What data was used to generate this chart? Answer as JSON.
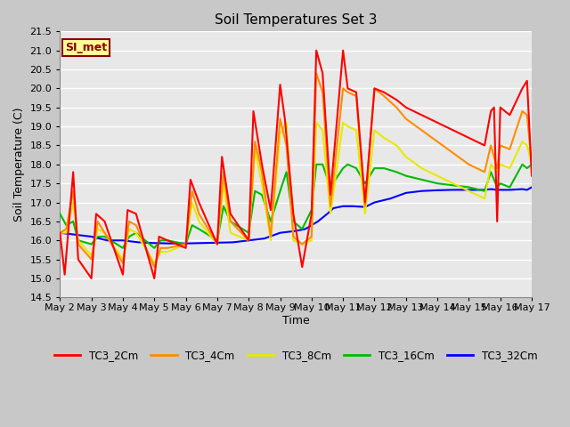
{
  "title": "Soil Temperatures Set 3",
  "xlabel": "Time",
  "ylabel": "Soil Temperature (C)",
  "ylim": [
    14.5,
    21.5
  ],
  "xlim": [
    0,
    15
  ],
  "fig_bg_color": "#c8c8c8",
  "plot_bg_color": "#e8e8e8",
  "annotation_text": "SI_met",
  "annotation_bg": "#ffff99",
  "annotation_border": "#8b0000",
  "annotation_text_color": "#8b0000",
  "x_tick_labels": [
    "May 2",
    "May 3",
    "May 4",
    "May 5",
    "May 6",
    "May 7",
    "May 8",
    "May 9",
    "May 10",
    "May 11",
    "May 12",
    "May 13",
    "May 14",
    "May 15",
    "May 16",
    "May 17"
  ],
  "yticks": [
    14.5,
    15.0,
    15.5,
    16.0,
    16.5,
    17.0,
    17.5,
    18.0,
    18.5,
    19.0,
    19.5,
    20.0,
    20.5,
    21.0,
    21.5
  ],
  "series": {
    "TC3_2Cm": {
      "color": "#ff0000",
      "data": [
        [
          0.0,
          16.2
        ],
        [
          0.15,
          15.1
        ],
        [
          0.42,
          17.8
        ],
        [
          0.58,
          15.5
        ],
        [
          1.0,
          15.0
        ],
        [
          1.15,
          16.7
        ],
        [
          1.42,
          16.5
        ],
        [
          2.0,
          15.1
        ],
        [
          2.15,
          16.8
        ],
        [
          2.42,
          16.7
        ],
        [
          3.0,
          15.0
        ],
        [
          3.15,
          16.1
        ],
        [
          3.42,
          16.0
        ],
        [
          4.0,
          15.8
        ],
        [
          4.15,
          17.6
        ],
        [
          4.42,
          17.0
        ],
        [
          5.0,
          15.9
        ],
        [
          5.15,
          18.2
        ],
        [
          5.42,
          16.7
        ],
        [
          6.0,
          16.0
        ],
        [
          6.15,
          19.4
        ],
        [
          6.42,
          18.0
        ],
        [
          6.7,
          16.8
        ],
        [
          7.0,
          20.1
        ],
        [
          7.15,
          19.2
        ],
        [
          7.42,
          16.7
        ],
        [
          7.7,
          15.3
        ],
        [
          8.0,
          16.7
        ],
        [
          8.15,
          21.0
        ],
        [
          8.35,
          20.4
        ],
        [
          8.6,
          17.2
        ],
        [
          9.0,
          21.0
        ],
        [
          9.15,
          20.0
        ],
        [
          9.42,
          19.9
        ],
        [
          9.7,
          17.0
        ],
        [
          10.0,
          20.0
        ],
        [
          10.3,
          19.9
        ],
        [
          10.7,
          19.7
        ],
        [
          11.0,
          19.5
        ],
        [
          11.5,
          19.3
        ],
        [
          12.0,
          19.1
        ],
        [
          12.5,
          18.9
        ],
        [
          13.0,
          18.7
        ],
        [
          13.5,
          18.5
        ],
        [
          13.7,
          19.4
        ],
        [
          13.8,
          19.5
        ],
        [
          13.9,
          16.5
        ],
        [
          14.0,
          19.5
        ],
        [
          14.3,
          19.3
        ],
        [
          14.7,
          20.0
        ],
        [
          14.85,
          20.2
        ],
        [
          15.0,
          17.7
        ]
      ]
    },
    "TC3_4Cm": {
      "color": "#ff8c00",
      "data": [
        [
          0.0,
          16.2
        ],
        [
          0.2,
          16.3
        ],
        [
          0.42,
          17.3
        ],
        [
          0.58,
          15.9
        ],
        [
          1.0,
          15.5
        ],
        [
          1.2,
          16.5
        ],
        [
          1.42,
          16.2
        ],
        [
          2.0,
          15.4
        ],
        [
          2.2,
          16.5
        ],
        [
          2.42,
          16.4
        ],
        [
          3.0,
          15.3
        ],
        [
          3.2,
          15.8
        ],
        [
          3.42,
          15.8
        ],
        [
          4.0,
          15.9
        ],
        [
          4.2,
          17.3
        ],
        [
          4.42,
          16.7
        ],
        [
          5.0,
          15.9
        ],
        [
          5.2,
          17.8
        ],
        [
          5.42,
          16.5
        ],
        [
          6.0,
          16.0
        ],
        [
          6.2,
          18.6
        ],
        [
          6.42,
          17.8
        ],
        [
          6.7,
          16.1
        ],
        [
          7.0,
          19.2
        ],
        [
          7.2,
          18.5
        ],
        [
          7.42,
          16.1
        ],
        [
          7.7,
          15.9
        ],
        [
          8.0,
          16.1
        ],
        [
          8.15,
          20.4
        ],
        [
          8.35,
          19.9
        ],
        [
          8.6,
          16.9
        ],
        [
          9.0,
          20.0
        ],
        [
          9.15,
          19.9
        ],
        [
          9.42,
          19.8
        ],
        [
          9.7,
          16.9
        ],
        [
          10.0,
          20.0
        ],
        [
          10.3,
          19.8
        ],
        [
          10.7,
          19.5
        ],
        [
          11.0,
          19.2
        ],
        [
          11.5,
          18.9
        ],
        [
          12.0,
          18.6
        ],
        [
          12.5,
          18.3
        ],
        [
          13.0,
          18.0
        ],
        [
          13.5,
          17.8
        ],
        [
          13.7,
          18.5
        ],
        [
          13.9,
          17.9
        ],
        [
          14.0,
          18.5
        ],
        [
          14.3,
          18.4
        ],
        [
          14.7,
          19.4
        ],
        [
          14.85,
          19.3
        ],
        [
          15.0,
          18.0
        ]
      ]
    },
    "TC3_8Cm": {
      "color": "#e8e800",
      "data": [
        [
          0.0,
          16.2
        ],
        [
          0.2,
          16.2
        ],
        [
          0.42,
          17.0
        ],
        [
          0.58,
          16.0
        ],
        [
          1.0,
          15.6
        ],
        [
          1.2,
          16.3
        ],
        [
          1.42,
          16.2
        ],
        [
          2.0,
          15.5
        ],
        [
          2.2,
          16.3
        ],
        [
          2.42,
          16.2
        ],
        [
          3.0,
          15.4
        ],
        [
          3.2,
          15.7
        ],
        [
          3.42,
          15.7
        ],
        [
          4.0,
          15.9
        ],
        [
          4.2,
          17.0
        ],
        [
          4.42,
          16.5
        ],
        [
          5.0,
          15.9
        ],
        [
          5.2,
          17.5
        ],
        [
          5.42,
          16.2
        ],
        [
          6.0,
          16.0
        ],
        [
          6.2,
          18.4
        ],
        [
          6.42,
          17.5
        ],
        [
          6.7,
          16.0
        ],
        [
          7.0,
          18.8
        ],
        [
          7.2,
          19.1
        ],
        [
          7.42,
          16.0
        ],
        [
          7.7,
          15.9
        ],
        [
          8.0,
          16.0
        ],
        [
          8.15,
          19.1
        ],
        [
          8.35,
          18.9
        ],
        [
          8.6,
          16.7
        ],
        [
          9.0,
          19.1
        ],
        [
          9.15,
          19.0
        ],
        [
          9.42,
          18.9
        ],
        [
          9.7,
          16.7
        ],
        [
          10.0,
          18.9
        ],
        [
          10.3,
          18.7
        ],
        [
          10.7,
          18.5
        ],
        [
          11.0,
          18.2
        ],
        [
          11.5,
          17.9
        ],
        [
          12.0,
          17.7
        ],
        [
          12.5,
          17.5
        ],
        [
          13.0,
          17.3
        ],
        [
          13.5,
          17.1
        ],
        [
          13.7,
          18.0
        ],
        [
          13.9,
          17.8
        ],
        [
          14.0,
          18.0
        ],
        [
          14.3,
          17.9
        ],
        [
          14.7,
          18.6
        ],
        [
          14.85,
          18.5
        ],
        [
          15.0,
          18.0
        ]
      ]
    },
    "TC3_16Cm": {
      "color": "#00bb00",
      "data": [
        [
          0.0,
          16.7
        ],
        [
          0.2,
          16.4
        ],
        [
          0.42,
          16.5
        ],
        [
          0.58,
          16.0
        ],
        [
          1.0,
          15.9
        ],
        [
          1.2,
          16.1
        ],
        [
          1.42,
          16.1
        ],
        [
          2.0,
          15.8
        ],
        [
          2.2,
          16.1
        ],
        [
          2.42,
          16.2
        ],
        [
          3.0,
          15.8
        ],
        [
          3.2,
          16.0
        ],
        [
          3.42,
          16.0
        ],
        [
          4.0,
          15.9
        ],
        [
          4.2,
          16.4
        ],
        [
          4.42,
          16.3
        ],
        [
          5.0,
          16.0
        ],
        [
          5.2,
          16.9
        ],
        [
          5.42,
          16.5
        ],
        [
          6.0,
          16.2
        ],
        [
          6.2,
          17.3
        ],
        [
          6.42,
          17.2
        ],
        [
          6.7,
          16.5
        ],
        [
          7.0,
          17.3
        ],
        [
          7.2,
          17.8
        ],
        [
          7.42,
          16.5
        ],
        [
          7.7,
          16.3
        ],
        [
          8.0,
          16.8
        ],
        [
          8.15,
          18.0
        ],
        [
          8.35,
          18.0
        ],
        [
          8.6,
          17.4
        ],
        [
          9.0,
          17.9
        ],
        [
          9.15,
          18.0
        ],
        [
          9.42,
          17.9
        ],
        [
          9.7,
          17.5
        ],
        [
          10.0,
          17.9
        ],
        [
          10.3,
          17.9
        ],
        [
          10.7,
          17.8
        ],
        [
          11.0,
          17.7
        ],
        [
          11.5,
          17.6
        ],
        [
          12.0,
          17.5
        ],
        [
          12.5,
          17.45
        ],
        [
          13.0,
          17.4
        ],
        [
          13.5,
          17.3
        ],
        [
          13.7,
          17.8
        ],
        [
          13.9,
          17.4
        ],
        [
          14.0,
          17.5
        ],
        [
          14.3,
          17.4
        ],
        [
          14.7,
          18.0
        ],
        [
          14.85,
          17.9
        ],
        [
          15.0,
          18.0
        ]
      ]
    },
    "TC3_32Cm": {
      "color": "#0000ff",
      "data": [
        [
          0.0,
          16.2
        ],
        [
          0.5,
          16.15
        ],
        [
          1.0,
          16.1
        ],
        [
          1.5,
          16.0
        ],
        [
          2.0,
          16.0
        ],
        [
          2.5,
          15.95
        ],
        [
          3.0,
          15.93
        ],
        [
          3.5,
          15.92
        ],
        [
          4.0,
          15.92
        ],
        [
          4.5,
          15.93
        ],
        [
          5.0,
          15.94
        ],
        [
          5.5,
          15.95
        ],
        [
          6.0,
          16.0
        ],
        [
          6.5,
          16.05
        ],
        [
          7.0,
          16.2
        ],
        [
          7.5,
          16.25
        ],
        [
          7.8,
          16.3
        ],
        [
          8.0,
          16.4
        ],
        [
          8.2,
          16.5
        ],
        [
          8.5,
          16.7
        ],
        [
          8.7,
          16.85
        ],
        [
          9.0,
          16.9
        ],
        [
          9.3,
          16.9
        ],
        [
          9.7,
          16.88
        ],
        [
          10.0,
          17.0
        ],
        [
          10.5,
          17.1
        ],
        [
          11.0,
          17.25
        ],
        [
          11.5,
          17.3
        ],
        [
          12.0,
          17.32
        ],
        [
          12.5,
          17.33
        ],
        [
          13.0,
          17.33
        ],
        [
          13.5,
          17.33
        ],
        [
          13.7,
          17.35
        ],
        [
          13.9,
          17.33
        ],
        [
          14.0,
          17.33
        ],
        [
          14.3,
          17.33
        ],
        [
          14.7,
          17.35
        ],
        [
          14.85,
          17.33
        ],
        [
          15.0,
          17.4
        ]
      ]
    }
  }
}
